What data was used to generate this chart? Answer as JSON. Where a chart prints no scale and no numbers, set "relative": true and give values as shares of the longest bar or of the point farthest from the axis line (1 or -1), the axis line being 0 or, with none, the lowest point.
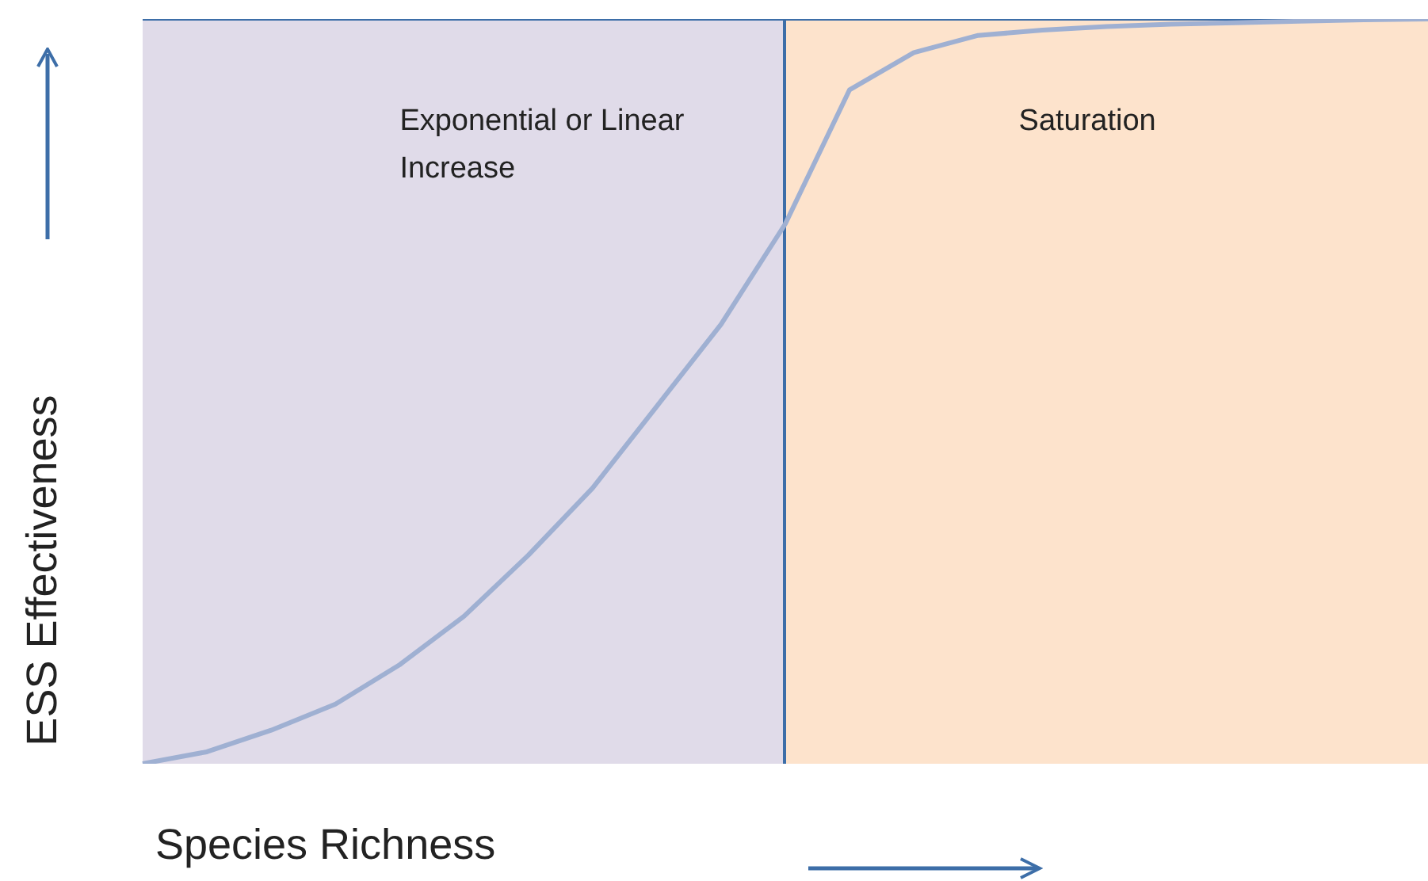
{
  "chart_data": {
    "type": "line",
    "relative": true,
    "xlabel": "Species Richness",
    "ylabel": "ESS Effectiveness",
    "tick_labels": false,
    "marker": "none",
    "line_style": "solid",
    "categories": [
      null,
      null,
      null,
      null,
      null,
      null,
      null,
      null,
      null,
      null,
      null,
      null,
      null,
      null,
      null,
      null,
      null,
      null,
      null,
      null,
      null
    ],
    "series": [
      {
        "color": "#9fb0d2",
        "values": [
          0,
          0.016,
          0.045,
          0.08,
          0.133,
          0.198,
          0.28,
          0.37,
          0.48,
          0.59,
          0.725,
          0.905,
          0.955,
          0.978,
          0.985,
          0.99,
          0.993,
          0.995,
          0.997,
          0.999,
          1
        ]
      }
    ],
    "annotations": [
      "Exponential or Linear Increase",
      "Saturation"
    ]
  }
}
